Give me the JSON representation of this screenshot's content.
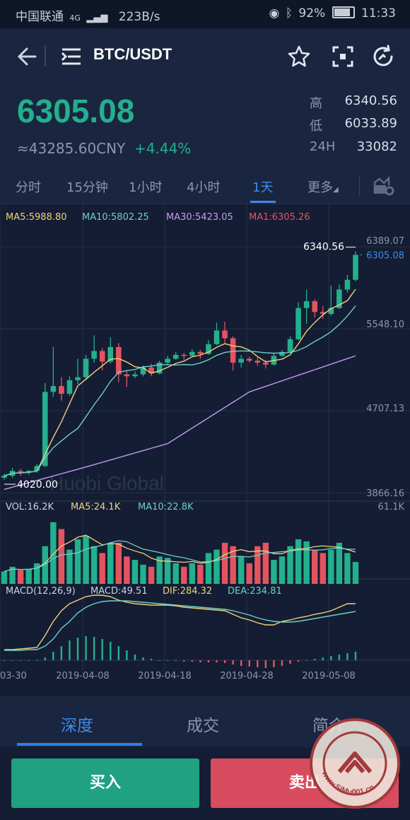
{
  "status_bar": {
    "carrier": "中国联通",
    "network": "4G",
    "speed": "223B/s",
    "battery": "92%",
    "time": "11:33"
  },
  "header": {
    "pair": "BTC/USDT"
  },
  "ticker": {
    "price": "6305.08",
    "cny": "≈43285.60CNY",
    "change": "+4.44%",
    "stats": [
      {
        "label": "高",
        "value": "6340.56"
      },
      {
        "label": "低",
        "value": "6033.89"
      },
      {
        "label": "24H",
        "value": "33082"
      }
    ]
  },
  "interval_tabs": [
    {
      "label": "分时"
    },
    {
      "label": "15分钟"
    },
    {
      "label": "1小时"
    },
    {
      "label": "4小时"
    },
    {
      "label": "1天",
      "active": true
    },
    {
      "label": "更多"
    }
  ],
  "ma_legend": [
    {
      "label": "MA5:5988.80",
      "color": "#f2d27a"
    },
    {
      "label": "MA10:5802.25",
      "color": "#6fd0c6"
    },
    {
      "label": "MA30:5423.05",
      "color": "#c79bf0"
    },
    {
      "label": "MA1:6305.26",
      "color": "#e4545f"
    }
  ],
  "price_axis": [
    "6389.07",
    "5548.10",
    "4707.13",
    "3866.16"
  ],
  "price_tag": "6305.08",
  "high_marker": "6340.56",
  "low_marker": "4020.00",
  "chart_watermark": "Huobi Global",
  "volume_legend": [
    {
      "label": "VOL:16.2K",
      "color": "#c9d3e6"
    },
    {
      "label": "MA5:24.1K",
      "color": "#f2d27a"
    },
    {
      "label": "MA10:22.8K",
      "color": "#6fd0c6"
    }
  ],
  "volume_axis": "61.1K",
  "macd_legend": [
    {
      "label": "MACD(12,26,9)",
      "color": "#c9d3e6"
    },
    {
      "label": "MACD:49.51",
      "color": "#c9d3e6"
    },
    {
      "label": "DIF:284.32",
      "color": "#f2d27a"
    },
    {
      "label": "DEA:234.81",
      "color": "#6fd0c6"
    }
  ],
  "date_axis": [
    "03-30",
    "2019-04-08",
    "2019-04-18",
    "2019-04-28",
    "2019-05-08"
  ],
  "bottom_tabs": [
    {
      "label": "深度",
      "active": true
    },
    {
      "label": "成交"
    },
    {
      "label": "简介"
    }
  ],
  "actions": {
    "buy": "买入",
    "sell": "卖出"
  },
  "site_watermark": "www.SiMu001.cn",
  "colors": {
    "up": "#23b08c",
    "down": "#e4545f",
    "accent": "#3d8ae8",
    "ma5": "#f2d27a",
    "ma10": "#6fd0c6",
    "ma30": "#c79bf0"
  },
  "chart_data": {
    "type": "candlestick",
    "ylim": [
      3866.16,
      6389.07
    ],
    "x_range": [
      "2019-03-28",
      "2019-05-10"
    ],
    "candles": [
      {
        "date": "2019-03-28",
        "o": 4020,
        "h": 4060,
        "l": 4000,
        "c": 4040
      },
      {
        "date": "2019-03-29",
        "o": 4040,
        "h": 4120,
        "l": 4020,
        "c": 4090
      },
      {
        "date": "2019-03-30",
        "o": 4090,
        "h": 4110,
        "l": 4040,
        "c": 4080
      },
      {
        "date": "2019-03-31",
        "o": 4080,
        "h": 4100,
        "l": 4050,
        "c": 4090
      },
      {
        "date": "2019-04-01",
        "o": 4090,
        "h": 4160,
        "l": 4070,
        "c": 4140
      },
      {
        "date": "2019-04-02",
        "o": 4140,
        "h": 4990,
        "l": 4130,
        "c": 4900
      },
      {
        "date": "2019-04-03",
        "o": 4900,
        "h": 5360,
        "l": 4850,
        "c": 4960
      },
      {
        "date": "2019-04-04",
        "o": 4960,
        "h": 5050,
        "l": 4810,
        "c": 4880
      },
      {
        "date": "2019-04-05",
        "o": 4880,
        "h": 5060,
        "l": 4860,
        "c": 5020
      },
      {
        "date": "2019-04-06",
        "o": 5020,
        "h": 5240,
        "l": 4980,
        "c": 5050
      },
      {
        "date": "2019-04-07",
        "o": 5050,
        "h": 5280,
        "l": 5020,
        "c": 5240
      },
      {
        "date": "2019-04-08",
        "o": 5240,
        "h": 5480,
        "l": 5200,
        "c": 5320
      },
      {
        "date": "2019-04-09",
        "o": 5320,
        "h": 5350,
        "l": 5120,
        "c": 5210
      },
      {
        "date": "2019-04-10",
        "o": 5210,
        "h": 5460,
        "l": 5190,
        "c": 5360
      },
      {
        "date": "2019-04-11",
        "o": 5360,
        "h": 5400,
        "l": 5000,
        "c": 5080
      },
      {
        "date": "2019-04-12",
        "o": 5080,
        "h": 5120,
        "l": 4950,
        "c": 5060
      },
      {
        "date": "2019-04-13",
        "o": 5060,
        "h": 5110,
        "l": 5040,
        "c": 5080
      },
      {
        "date": "2019-04-14",
        "o": 5080,
        "h": 5170,
        "l": 5060,
        "c": 5150
      },
      {
        "date": "2019-04-15",
        "o": 5150,
        "h": 5190,
        "l": 5060,
        "c": 5090
      },
      {
        "date": "2019-04-16",
        "o": 5090,
        "h": 5220,
        "l": 5080,
        "c": 5200
      },
      {
        "date": "2019-04-17",
        "o": 5200,
        "h": 5270,
        "l": 5180,
        "c": 5240
      },
      {
        "date": "2019-04-18",
        "o": 5240,
        "h": 5310,
        "l": 5230,
        "c": 5280
      },
      {
        "date": "2019-04-19",
        "o": 5280,
        "h": 5300,
        "l": 5230,
        "c": 5270
      },
      {
        "date": "2019-04-20",
        "o": 5270,
        "h": 5340,
        "l": 5260,
        "c": 5310
      },
      {
        "date": "2019-04-21",
        "o": 5310,
        "h": 5330,
        "l": 5240,
        "c": 5290
      },
      {
        "date": "2019-04-22",
        "o": 5290,
        "h": 5430,
        "l": 5280,
        "c": 5390
      },
      {
        "date": "2019-04-23",
        "o": 5390,
        "h": 5610,
        "l": 5380,
        "c": 5530
      },
      {
        "date": "2019-04-24",
        "o": 5530,
        "h": 5620,
        "l": 5400,
        "c": 5450
      },
      {
        "date": "2019-04-25",
        "o": 5450,
        "h": 5470,
        "l": 5120,
        "c": 5200
      },
      {
        "date": "2019-04-26",
        "o": 5200,
        "h": 5280,
        "l": 5150,
        "c": 5240
      },
      {
        "date": "2019-04-27",
        "o": 5240,
        "h": 5260,
        "l": 5200,
        "c": 5220
      },
      {
        "date": "2019-04-28",
        "o": 5220,
        "h": 5250,
        "l": 5170,
        "c": 5200
      },
      {
        "date": "2019-04-29",
        "o": 5200,
        "h": 5230,
        "l": 5140,
        "c": 5180
      },
      {
        "date": "2019-04-30",
        "o": 5180,
        "h": 5290,
        "l": 5170,
        "c": 5270
      },
      {
        "date": "2019-05-01",
        "o": 5270,
        "h": 5330,
        "l": 5260,
        "c": 5310
      },
      {
        "date": "2019-05-02",
        "o": 5310,
        "h": 5470,
        "l": 5300,
        "c": 5440
      },
      {
        "date": "2019-05-03",
        "o": 5440,
        "h": 5820,
        "l": 5430,
        "c": 5760
      },
      {
        "date": "2019-05-04",
        "o": 5760,
        "h": 5950,
        "l": 5600,
        "c": 5830
      },
      {
        "date": "2019-05-05",
        "o": 5830,
        "h": 5850,
        "l": 5660,
        "c": 5720
      },
      {
        "date": "2019-05-06",
        "o": 5720,
        "h": 5780,
        "l": 5650,
        "c": 5700
      },
      {
        "date": "2019-05-07",
        "o": 5700,
        "h": 5990,
        "l": 5680,
        "c": 5760
      },
      {
        "date": "2019-05-08",
        "o": 5760,
        "h": 6000,
        "l": 5750,
        "c": 5950
      },
      {
        "date": "2019-05-09",
        "o": 5950,
        "h": 6100,
        "l": 5920,
        "c": 6050
      },
      {
        "date": "2019-05-10",
        "o": 6050,
        "h": 6340.56,
        "l": 6033.89,
        "c": 6305.08
      }
    ],
    "ma30": [
      [
        0,
        3900
      ],
      [
        10,
        4130
      ],
      [
        20,
        4370
      ],
      [
        30,
        4900
      ],
      [
        43,
        5270
      ]
    ],
    "volume_ylim": [
      0,
      61100
    ],
    "macd_hist_note": "MACD histogram"
  }
}
